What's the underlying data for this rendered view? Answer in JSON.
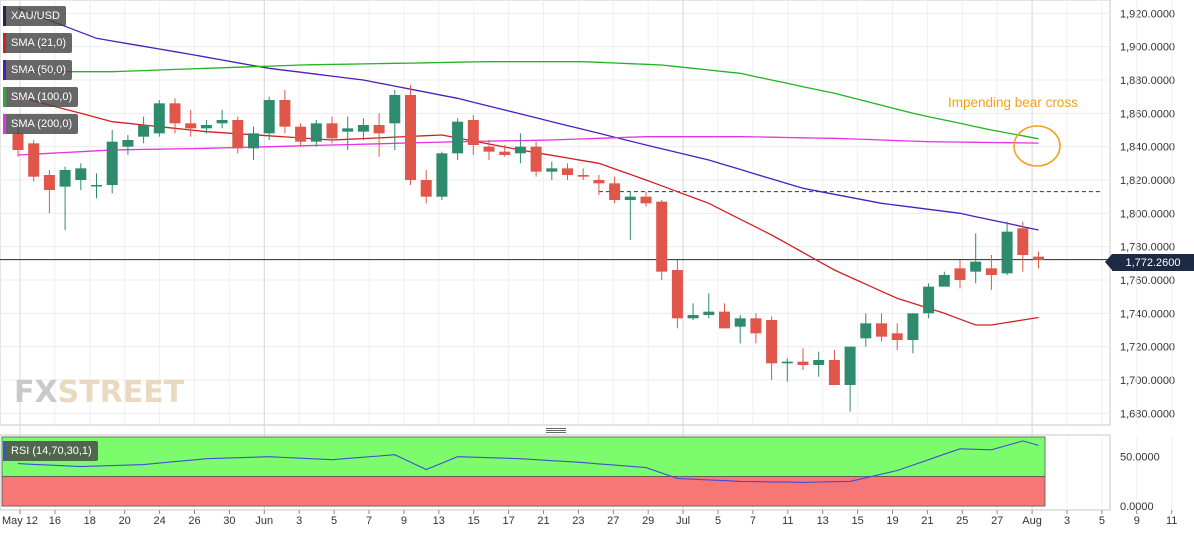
{
  "symbol": "XAU/USD",
  "indicators": [
    {
      "label": "SMA (21,0)",
      "color": "#d22020"
    },
    {
      "label": "SMA (50,0)",
      "color": "#4b1fbf"
    },
    {
      "label": "SMA (100,0)",
      "color": "#22b422"
    },
    {
      "label": "SMA (200,0)",
      "color": "#e632e6"
    }
  ],
  "current_price": "1,772.2600",
  "annotation": "Impending bear cross",
  "rsi": {
    "label": "RSI (14,70,30,1)",
    "ticks": [
      "50.0000",
      "0.0000"
    ],
    "overbought_color": "#7cfc6c",
    "oversold_color": "#f77777",
    "line_color": "#3f4fd6"
  },
  "brand": {
    "part1": "FX",
    "part2": "STREET"
  },
  "chart_data": {
    "type": "candlestick",
    "title": "",
    "x_tick_labels": [
      "May 12",
      "16",
      "18",
      "20",
      "24",
      "26",
      "30",
      "Jun",
      "3",
      "5",
      "7",
      "9",
      "13",
      "15",
      "17",
      "21",
      "23",
      "27",
      "29",
      "Jul",
      "5",
      "7",
      "11",
      "13",
      "15",
      "19",
      "21",
      "25",
      "27",
      "Aug",
      "3",
      "5",
      "9",
      "11"
    ],
    "y_ticks": [
      "1,920.0000",
      "1,900.0000",
      "1,880.0000",
      "1,860.0000",
      "1,840.0000",
      "1,820.0000",
      "1,800.0000",
      "1,780.0000",
      "1,760.0000",
      "1,740.0000",
      "1,720.0000",
      "1,700.0000",
      "1,680.0000"
    ],
    "ylim": [
      1673,
      1928
    ],
    "up_color": "#2e8b6e",
    "down_color": "#e0564a",
    "candles": [
      [
        1848,
        1854,
        1834,
        1838
      ],
      [
        1842,
        1844,
        1819,
        1822
      ],
      [
        1823,
        1826,
        1800,
        1814
      ],
      [
        1816,
        1828,
        1790,
        1826
      ],
      [
        1820,
        1830,
        1814,
        1827
      ],
      [
        1817,
        1824,
        1809,
        1817
      ],
      [
        1817,
        1850,
        1812,
        1843
      ],
      [
        1840,
        1847,
        1835,
        1844
      ],
      [
        1846,
        1858,
        1842,
        1853
      ],
      [
        1848,
        1868,
        1846,
        1866
      ],
      [
        1866,
        1869,
        1848,
        1854
      ],
      [
        1854,
        1862,
        1846,
        1851
      ],
      [
        1851,
        1856,
        1848,
        1853
      ],
      [
        1854,
        1862,
        1851,
        1856
      ],
      [
        1856,
        1858,
        1836,
        1839
      ],
      [
        1839,
        1852,
        1832,
        1848
      ],
      [
        1848,
        1870,
        1844,
        1868
      ],
      [
        1868,
        1874,
        1848,
        1852
      ],
      [
        1852,
        1854,
        1840,
        1843
      ],
      [
        1843,
        1856,
        1840,
        1854
      ],
      [
        1854,
        1858,
        1842,
        1845
      ],
      [
        1849,
        1858,
        1838,
        1851
      ],
      [
        1849,
        1857,
        1844,
        1853
      ],
      [
        1853,
        1860,
        1834,
        1848
      ],
      [
        1854,
        1874,
        1838,
        1871
      ],
      [
        1871,
        1877,
        1817,
        1820
      ],
      [
        1820,
        1826,
        1806,
        1810
      ],
      [
        1810,
        1837,
        1808,
        1836
      ],
      [
        1836,
        1857,
        1832,
        1855
      ],
      [
        1856,
        1859,
        1835,
        1841
      ],
      [
        1840,
        1844,
        1832,
        1837
      ],
      [
        1837,
        1841,
        1834,
        1835
      ],
      [
        1836,
        1848,
        1830,
        1840
      ],
      [
        1840,
        1843,
        1822,
        1825
      ],
      [
        1825,
        1831,
        1820,
        1827
      ],
      [
        1827,
        1830,
        1820,
        1823
      ],
      [
        1823,
        1827,
        1820,
        1822
      ],
      [
        1820,
        1823,
        1811,
        1818
      ],
      [
        1818,
        1822,
        1806,
        1808
      ],
      [
        1808,
        1813,
        1784,
        1810
      ],
      [
        1810,
        1813,
        1804,
        1806
      ],
      [
        1807,
        1808,
        1760,
        1765
      ],
      [
        1766,
        1772,
        1731,
        1737
      ],
      [
        1737,
        1746,
        1736,
        1739
      ],
      [
        1739,
        1752,
        1737,
        1741
      ],
      [
        1741,
        1746,
        1731,
        1731
      ],
      [
        1732,
        1739,
        1722,
        1737
      ],
      [
        1737,
        1740,
        1722,
        1728
      ],
      [
        1736,
        1738,
        1700,
        1710
      ],
      [
        1710,
        1713,
        1699,
        1711
      ],
      [
        1711,
        1719,
        1706,
        1709
      ],
      [
        1709,
        1717,
        1702,
        1712
      ],
      [
        1712,
        1718,
        1697,
        1697
      ],
      [
        1697,
        1720,
        1681,
        1720
      ],
      [
        1725,
        1740,
        1720,
        1734
      ],
      [
        1734,
        1740,
        1723,
        1726
      ],
      [
        1728,
        1734,
        1718,
        1724
      ],
      [
        1724,
        1740,
        1716,
        1740
      ],
      [
        1740,
        1758,
        1737,
        1756
      ],
      [
        1756,
        1765,
        1757,
        1763
      ],
      [
        1767,
        1772,
        1755,
        1760
      ],
      [
        1765,
        1788,
        1758,
        1771
      ],
      [
        1767,
        1775,
        1754,
        1763
      ],
      [
        1764,
        1795,
        1763,
        1789
      ],
      [
        1791,
        1795,
        1765,
        1775
      ],
      [
        1774,
        1777,
        1767,
        1772
      ]
    ],
    "series": [
      {
        "name": "SMA (21,0)",
        "color": "#d22020",
        "anchors": [
          [
            0,
            1870
          ],
          [
            6,
            1855
          ],
          [
            12,
            1849
          ],
          [
            20,
            1844
          ],
          [
            27,
            1847
          ],
          [
            32,
            1838
          ],
          [
            37,
            1830
          ],
          [
            40,
            1820
          ],
          [
            44,
            1806
          ],
          [
            48,
            1787
          ],
          [
            52,
            1766
          ],
          [
            56,
            1749
          ],
          [
            59,
            1740
          ],
          [
            61,
            1733
          ],
          [
            62,
            1733
          ],
          [
            64,
            1736
          ],
          [
            66,
            1739
          ]
        ]
      },
      {
        "name": "SMA (50,0)",
        "color": "#4b1fbf",
        "anchors": [
          [
            0,
            1923
          ],
          [
            5,
            1905
          ],
          [
            10,
            1897
          ],
          [
            16,
            1887
          ],
          [
            22,
            1880
          ],
          [
            28,
            1869
          ],
          [
            34,
            1855
          ],
          [
            40,
            1841
          ],
          [
            44,
            1832
          ],
          [
            50,
            1815
          ],
          [
            55,
            1806
          ],
          [
            60,
            1800
          ],
          [
            66,
            1788
          ]
        ]
      },
      {
        "name": "SMA (100,0)",
        "color": "#22b422",
        "anchors": [
          [
            0,
            1885
          ],
          [
            6,
            1885
          ],
          [
            12,
            1887
          ],
          [
            18,
            1889
          ],
          [
            24,
            1890
          ],
          [
            30,
            1891
          ],
          [
            36,
            1891
          ],
          [
            41,
            1889
          ],
          [
            46,
            1884
          ],
          [
            52,
            1872
          ],
          [
            57,
            1860
          ],
          [
            62,
            1850
          ],
          [
            66,
            1843
          ]
        ]
      },
      {
        "name": "SMA (200,0)",
        "color": "#e632e6",
        "anchors": [
          [
            0,
            1835
          ],
          [
            6,
            1838
          ],
          [
            12,
            1839
          ],
          [
            20,
            1841
          ],
          [
            28,
            1843
          ],
          [
            34,
            1844
          ],
          [
            40,
            1846
          ],
          [
            46,
            1846
          ],
          [
            52,
            1845
          ],
          [
            58,
            1843
          ],
          [
            66,
            1842
          ]
        ]
      },
      {
        "name": "RSI",
        "color": "#3f4fd6",
        "anchors": [
          [
            0,
            43
          ],
          [
            4,
            40
          ],
          [
            8,
            42
          ],
          [
            12,
            48
          ],
          [
            16,
            50
          ],
          [
            20,
            47
          ],
          [
            24,
            52
          ],
          [
            26,
            37
          ],
          [
            28,
            50
          ],
          [
            32,
            48
          ],
          [
            36,
            44
          ],
          [
            40,
            39
          ],
          [
            42,
            28
          ],
          [
            46,
            25
          ],
          [
            50,
            24
          ],
          [
            53,
            25
          ],
          [
            56,
            36
          ],
          [
            58,
            47
          ],
          [
            60,
            58
          ],
          [
            62,
            57
          ],
          [
            64,
            66
          ],
          [
            66,
            57
          ]
        ]
      }
    ],
    "reference_lines": [
      {
        "value": 1813,
        "style": "dashed",
        "from_candle": 37
      },
      {
        "value": 1772.26,
        "style": "solid"
      }
    ],
    "rsi_ylim": [
      -4,
      72
    ],
    "rsi_bands": {
      "overbought": [
        30,
        70
      ],
      "oversold": [
        0,
        30
      ]
    }
  }
}
